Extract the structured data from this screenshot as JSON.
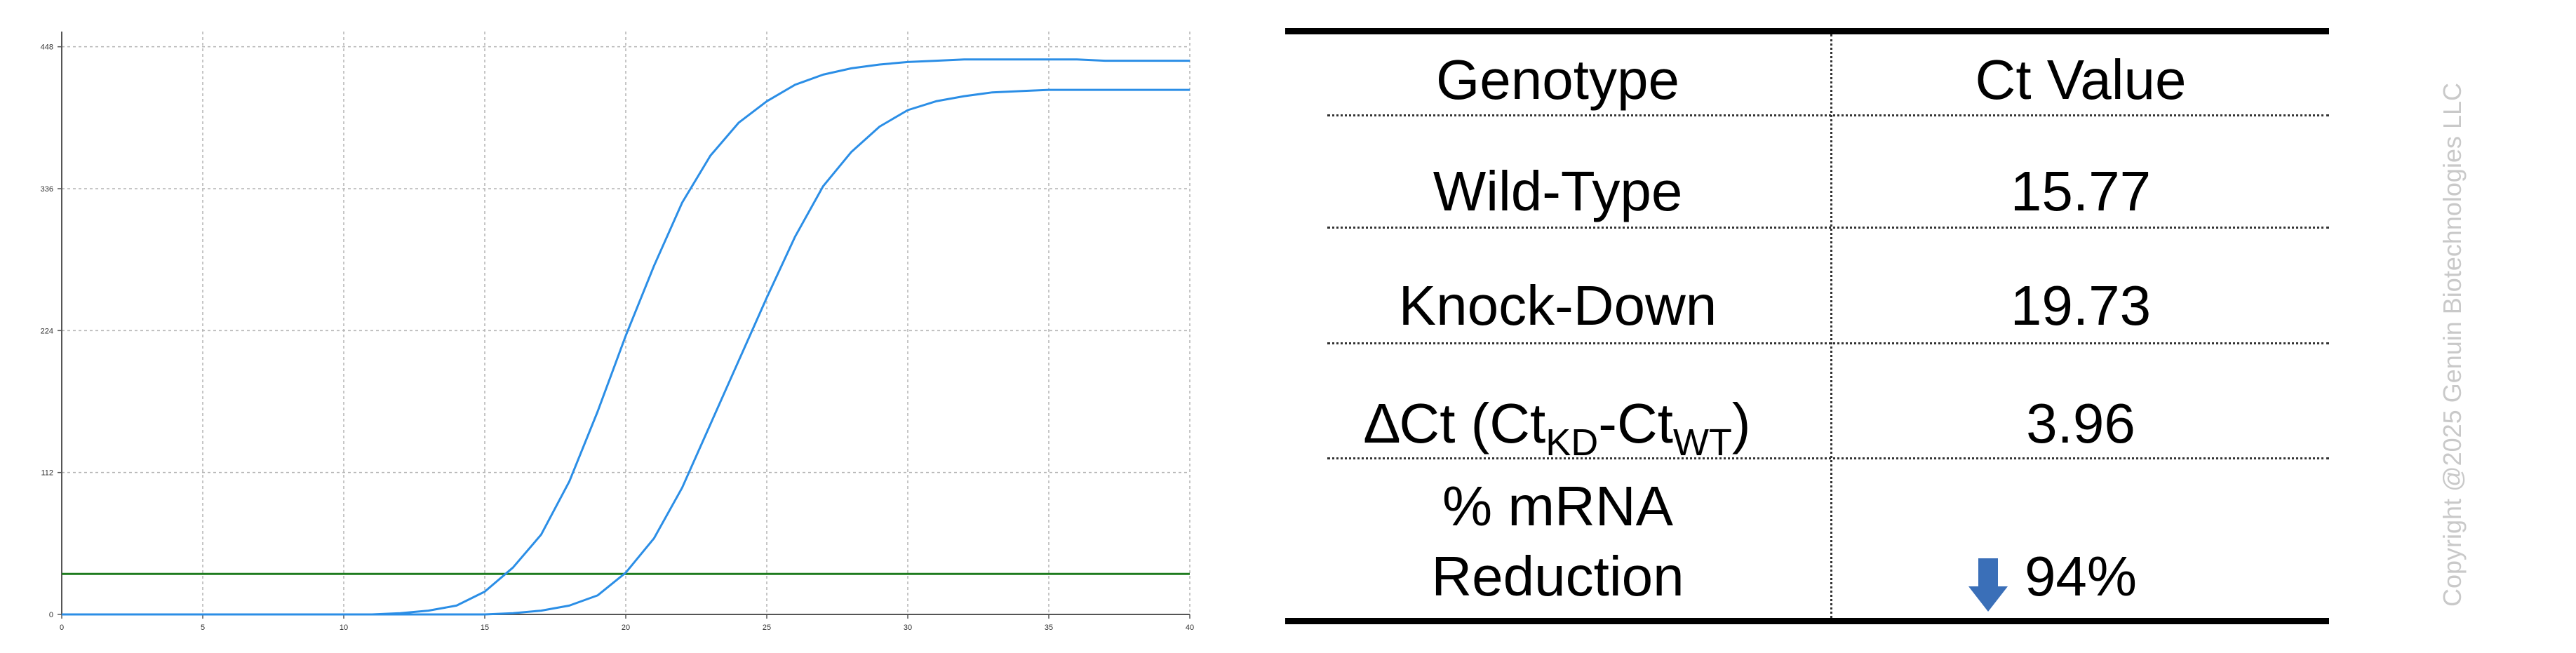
{
  "chart_data": {
    "type": "line",
    "x_ticks": [
      0,
      5,
      10,
      15,
      20,
      25,
      30,
      35,
      40
    ],
    "y_ticks": [
      0,
      112,
      224,
      336,
      448
    ],
    "xlim": [
      0,
      40
    ],
    "ylim": [
      0,
      460
    ],
    "grid": true,
    "threshold": 32,
    "series": [
      {
        "color": "#2b8ee6",
        "x": [
          0,
          11,
          12,
          13,
          14,
          15,
          16,
          17,
          18,
          19,
          20,
          21,
          22,
          23,
          24,
          25,
          26,
          27,
          28,
          29,
          30,
          31,
          32,
          33,
          34,
          35,
          36,
          37,
          38,
          39,
          40
        ],
        "y": [
          0,
          0,
          1,
          3,
          7,
          18,
          37,
          63,
          105,
          160,
          220,
          275,
          325,
          362,
          388,
          405,
          418,
          426,
          431,
          434,
          436,
          437,
          438,
          438,
          438,
          438,
          438,
          437,
          437,
          437,
          437
        ]
      },
      {
        "color": "#2b8ee6",
        "x": [
          0,
          15,
          16,
          17,
          18,
          19,
          20,
          21,
          22,
          23,
          24,
          25,
          26,
          27,
          28,
          29,
          30,
          31,
          32,
          33,
          34,
          35,
          36,
          37,
          38,
          39,
          40
        ],
        "y": [
          0,
          0,
          1,
          3,
          7,
          15,
          33,
          60,
          100,
          150,
          200,
          250,
          298,
          338,
          365,
          385,
          398,
          405,
          409,
          412,
          413,
          414,
          414,
          414,
          414,
          414,
          414
        ]
      }
    ],
    "colors": {
      "amplification": "#2b8ee6",
      "threshold": "#1e7b1e",
      "grid": "#b4b4b4"
    }
  },
  "table": {
    "headers": [
      "Genotype",
      "Ct Value"
    ],
    "rows": [
      {
        "label": "Wild-Type",
        "value": "15.77"
      },
      {
        "label": "Knock-Down",
        "value": "19.73"
      },
      {
        "label_main": "∆Ct (Ct",
        "label_sub1": "KD",
        "label_mid": "-Ct",
        "label_sub2": "WT",
        "label_end": ")",
        "value": "3.96"
      },
      {
        "label_line1": "% mRNA",
        "label_line2": "Reduction",
        "value": "94%",
        "icon": "down-arrow-icon",
        "icon_color": "#3a6fb8"
      }
    ]
  },
  "copyright": "Copyright @2025 Genuin Biotechnologies LLC"
}
